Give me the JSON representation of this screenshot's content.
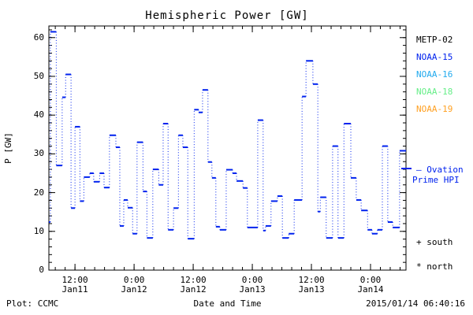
{
  "title": "Hemispheric Power [GW]",
  "axes": {
    "ylabel": "P [GW]",
    "xlabel": "Date and Time",
    "y_ticks": [
      0,
      10,
      20,
      30,
      40,
      50,
      60
    ]
  },
  "legend": {
    "satellites": [
      {
        "label": "METP-02",
        "color": "#000000"
      },
      {
        "label": "NOAA-15",
        "color": "#0022EE"
      },
      {
        "label": "NOAA-16",
        "color": "#22AAEE"
      },
      {
        "label": "NOAA-18",
        "color": "#66EE88"
      },
      {
        "label": "NOAA-19",
        "color": "#FFA022"
      }
    ],
    "model_marker": "—",
    "model_line1": "— Ovation",
    "model_line2": "Prime HPI",
    "model_color": "#0022EE",
    "south_label": "+ south",
    "north_label": "* north"
  },
  "footer": {
    "left": "Plot: CCMC",
    "center": "Date and Time",
    "right": "2015/01/14 06:40:16"
  },
  "chart_data": {
    "type": "line",
    "subtype": "step-with-dotted-connectors",
    "title": "Hemispheric Power [GW]",
    "xlabel": "Date and Time",
    "ylabel": "P [GW]",
    "ylim": [
      0,
      63
    ],
    "y_major_ticks": [
      0,
      10,
      20,
      30,
      40,
      50,
      60
    ],
    "y_minor_step": 2,
    "x_epoch": "hours after 2015-01-11 00:00 UT",
    "xlim_hours": [
      6.7,
      79.2
    ],
    "x_major_ticks_hours": [
      12,
      24,
      36,
      48,
      60,
      72
    ],
    "x_minor_step_hours": 2,
    "x_tick_labels": [
      {
        "t": 12,
        "time": "12:00",
        "date": "Jan11"
      },
      {
        "t": 24,
        "time": "0:00",
        "date": "Jan12"
      },
      {
        "t": 36,
        "time": "12:00",
        "date": "Jan12"
      },
      {
        "t": 48,
        "time": "0:00",
        "date": "Jan13"
      },
      {
        "t": 60,
        "time": "12:00",
        "date": "Jan13"
      },
      {
        "t": 72,
        "time": "0:00",
        "date": "Jan14"
      }
    ],
    "grid": false,
    "legend_position": "right",
    "series": [
      {
        "name": "Ovation Prime HPI",
        "color": "#0022EE",
        "units": "GW",
        "steps_t0_t1_gw": [
          [
            6.4,
            7.0,
            12.4
          ],
          [
            7.0,
            8.2,
            61.5
          ],
          [
            8.2,
            9.4,
            27.0
          ],
          [
            9.4,
            10.1,
            44.6
          ],
          [
            10.1,
            11.2,
            50.5
          ],
          [
            11.2,
            12.0,
            16.0
          ],
          [
            12.0,
            13.0,
            37.0
          ],
          [
            13.0,
            13.8,
            17.8
          ],
          [
            13.8,
            15.0,
            24.0
          ],
          [
            15.0,
            15.8,
            25.0
          ],
          [
            15.8,
            17.0,
            22.8
          ],
          [
            17.0,
            17.9,
            25.0
          ],
          [
            17.9,
            19.0,
            21.3
          ],
          [
            19.0,
            20.3,
            34.8
          ],
          [
            20.3,
            21.1,
            31.7
          ],
          [
            21.1,
            21.9,
            11.4
          ],
          [
            21.9,
            22.7,
            18.1
          ],
          [
            22.7,
            23.7,
            16.1
          ],
          [
            23.7,
            24.6,
            9.4
          ],
          [
            24.6,
            25.8,
            33.0
          ],
          [
            25.8,
            26.6,
            20.3
          ],
          [
            26.6,
            27.8,
            8.3
          ],
          [
            27.8,
            29.0,
            26.0
          ],
          [
            29.0,
            29.9,
            22.0
          ],
          [
            29.9,
            30.9,
            37.8
          ],
          [
            30.9,
            32.0,
            10.4
          ],
          [
            32.0,
            33.0,
            16.0
          ],
          [
            33.0,
            33.9,
            34.8
          ],
          [
            33.9,
            34.9,
            31.7
          ],
          [
            34.9,
            36.2,
            8.1
          ],
          [
            36.2,
            37.1,
            41.4
          ],
          [
            37.1,
            37.9,
            40.7
          ],
          [
            37.9,
            39.0,
            46.5
          ],
          [
            39.0,
            39.8,
            27.9
          ],
          [
            39.8,
            40.6,
            23.8
          ],
          [
            40.6,
            41.4,
            11.2
          ],
          [
            41.4,
            42.7,
            10.4
          ],
          [
            42.7,
            44.0,
            25.9
          ],
          [
            44.0,
            44.8,
            25.0
          ],
          [
            44.8,
            46.1,
            23.0
          ],
          [
            46.1,
            47.0,
            21.2
          ],
          [
            47.0,
            49.1,
            11.0
          ],
          [
            49.1,
            50.2,
            38.7
          ],
          [
            50.2,
            50.7,
            10.2
          ],
          [
            50.7,
            51.8,
            11.4
          ],
          [
            51.8,
            53.1,
            17.8
          ],
          [
            53.1,
            54.1,
            19.1
          ],
          [
            54.1,
            55.4,
            8.3
          ],
          [
            55.4,
            56.5,
            9.4
          ],
          [
            56.5,
            58.1,
            18.1
          ],
          [
            58.1,
            58.9,
            44.8
          ],
          [
            58.9,
            60.3,
            54.0
          ],
          [
            60.3,
            61.3,
            48.0
          ],
          [
            61.3,
            61.8,
            15.1
          ],
          [
            61.8,
            63.0,
            18.8
          ],
          [
            63.0,
            64.3,
            8.3
          ],
          [
            64.3,
            65.4,
            32.0
          ],
          [
            65.4,
            66.6,
            8.3
          ],
          [
            66.6,
            68.0,
            37.8
          ],
          [
            68.0,
            69.1,
            23.8
          ],
          [
            69.1,
            70.1,
            18.1
          ],
          [
            70.1,
            71.4,
            15.4
          ],
          [
            71.4,
            72.3,
            10.4
          ],
          [
            72.3,
            73.4,
            9.4
          ],
          [
            73.4,
            74.4,
            10.4
          ],
          [
            74.4,
            75.5,
            32.0
          ],
          [
            75.5,
            76.5,
            12.4
          ],
          [
            76.5,
            77.9,
            11.0
          ],
          [
            77.9,
            79.2,
            30.8
          ]
        ]
      }
    ]
  }
}
